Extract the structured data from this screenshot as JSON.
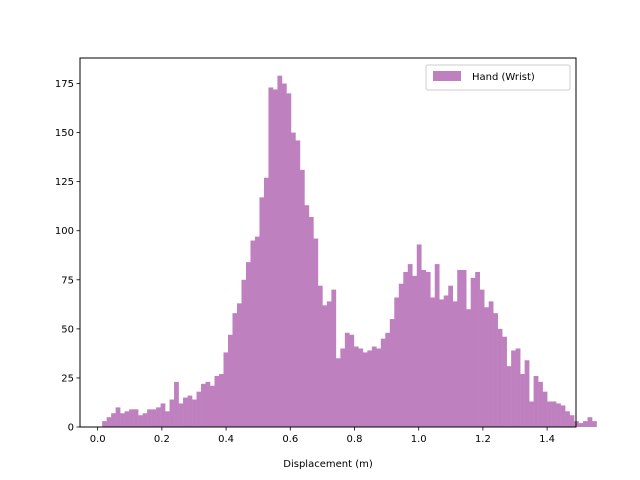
{
  "chart_data": {
    "type": "bar",
    "subtype": "histogram",
    "title": "",
    "xlabel": "Displacement (m)",
    "ylabel": "",
    "xlim": [
      -0.055,
      1.49
    ],
    "ylim": [
      0,
      188
    ],
    "x_ticks": [
      0.0,
      0.2,
      0.4,
      0.6,
      0.8,
      1.0,
      1.2,
      1.4
    ],
    "x_tick_labels": [
      "0.0",
      "0.2",
      "0.4",
      "0.6",
      "0.8",
      "1.0",
      "1.2",
      "1.4"
    ],
    "y_ticks": [
      0,
      25,
      50,
      75,
      100,
      125,
      150,
      175
    ],
    "y_tick_labels": [
      "0",
      "25",
      "50",
      "75",
      "100",
      "125",
      "150",
      "175"
    ],
    "grid": false,
    "legend_position": "upper right",
    "color": "#bf80bf",
    "series": [
      {
        "name": "Hand (Wrist)",
        "bin_start": 0.014,
        "bin_width": 0.014,
        "values": [
          3,
          5,
          7,
          10,
          7,
          8,
          9,
          9,
          6,
          7,
          9,
          9,
          10,
          12,
          8,
          14,
          23,
          12,
          15,
          16,
          14,
          18,
          22,
          23,
          21,
          26,
          27,
          38,
          47,
          58,
          63,
          75,
          84,
          95,
          97,
          117,
          127,
          173,
          172,
          179,
          175,
          170,
          150,
          146,
          131,
          113,
          107,
          96,
          72,
          62,
          64,
          70,
          35,
          40,
          48,
          47,
          41,
          40,
          38,
          39,
          41,
          40,
          45,
          48,
          55,
          66,
          73,
          79,
          83,
          77,
          93,
          80,
          79,
          66,
          83,
          65,
          67,
          72,
          64,
          80,
          80,
          60,
          76,
          79,
          70,
          61,
          64,
          58,
          50,
          46,
          31,
          39,
          40,
          27,
          34,
          13,
          26,
          23,
          18,
          13,
          13,
          12,
          11,
          8,
          6,
          3,
          2,
          3,
          5,
          3
        ]
      }
    ]
  }
}
